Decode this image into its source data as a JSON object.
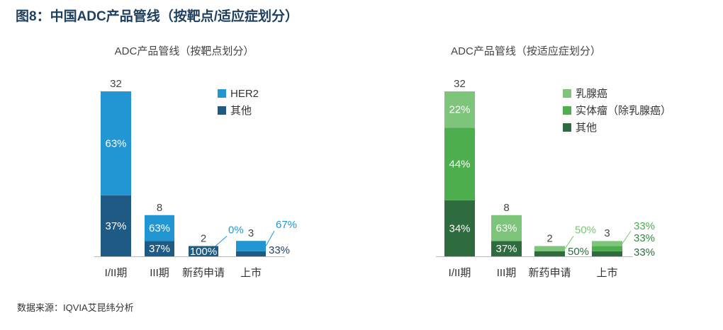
{
  "figure_title": "图8：中国ADC产品管线（按靶点/适应症划分）",
  "source": "数据来源：IQVIA艾昆纬分析",
  "chart_data": [
    {
      "type": "bar",
      "stacked": true,
      "title": "ADC产品管线（按靶点划分）",
      "categories": [
        "I/II期",
        "III期",
        "新药申请",
        "上市"
      ],
      "totals": [
        32,
        8,
        2,
        3
      ],
      "ylim": [
        0,
        32
      ],
      "legend_position": "top-right",
      "series": [
        {
          "name": "其他",
          "color": "#1f5a85",
          "percent": [
            37,
            37,
            100,
            33
          ],
          "labels": [
            "37%",
            "37%",
            "100%",
            "33%"
          ]
        },
        {
          "name": "HER2",
          "color": "#2196d3",
          "percent": [
            63,
            63,
            0,
            67
          ],
          "labels": [
            "63%",
            "63%",
            "0%",
            "67%"
          ]
        }
      ]
    },
    {
      "type": "bar",
      "stacked": true,
      "title": "ADC产品管线（按适应症划分）",
      "categories": [
        "I/II期",
        "III期",
        "新药申请",
        "上市"
      ],
      "totals": [
        32,
        8,
        2,
        3
      ],
      "ylim": [
        0,
        32
      ],
      "legend_position": "top-right",
      "series": [
        {
          "name": "其他",
          "color": "#2e6b3e",
          "percent": [
            34,
            37,
            50,
            33
          ],
          "labels": [
            "34%",
            "37%",
            "50%",
            "33%"
          ]
        },
        {
          "name": "实体瘤（除乳腺癌）",
          "color": "#4cae4c",
          "percent": [
            44,
            0,
            0,
            33
          ],
          "labels": [
            "44%",
            "",
            "",
            "33%"
          ]
        },
        {
          "name": "乳腺癌",
          "color": "#7cc57a",
          "percent": [
            22,
            63,
            50,
            33
          ],
          "labels": [
            "22%",
            "63%",
            "50%",
            "33%"
          ]
        }
      ]
    }
  ]
}
